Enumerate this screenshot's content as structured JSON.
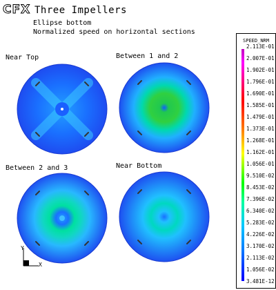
{
  "header": {
    "logo": "CFX",
    "title": "Three Impellers",
    "subtitle1": "Ellipse bottom",
    "subtitle2": "Normalized speed on horizontal sections"
  },
  "panels": [
    {
      "label": "Near Top"
    },
    {
      "label": "Between 1 and 2"
    },
    {
      "label": "Between 2 and 3"
    },
    {
      "label": "Near Bottom"
    }
  ],
  "legend": {
    "title": "SPEED_NRM",
    "ticks": [
      "2.113E-01",
      "2.007E-01",
      "1.902E-01",
      "1.796E-01",
      "1.690E-01",
      "1.585E-01",
      "1.479E-01",
      "1.373E-01",
      "1.268E-01",
      "1.162E-01",
      "1.056E-01",
      "9.510E-02",
      "8.453E-02",
      "7.396E-02",
      "6.340E-02",
      "5.283E-02",
      "4.226E-02",
      "3.170E-02",
      "2.113E-02",
      "1.056E-02",
      "3.481E-12"
    ]
  },
  "axes": {
    "y_label": "Y",
    "x_label": "X"
  }
}
